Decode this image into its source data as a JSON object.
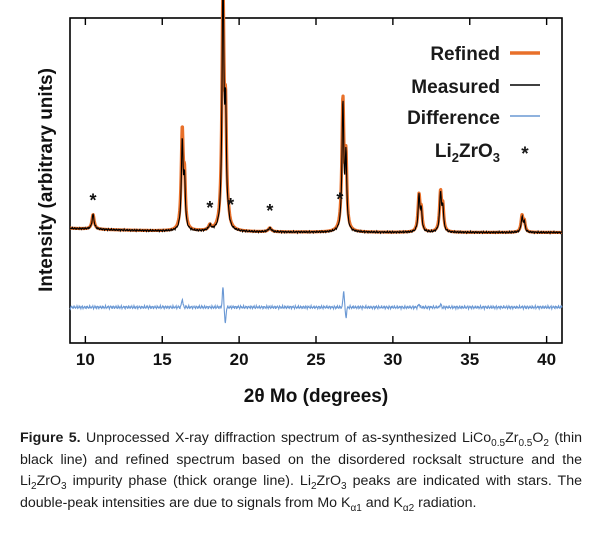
{
  "chart_data": {
    "type": "line",
    "xlabel_parts": {
      "two": "2",
      "theta": "θ",
      "rest": " Mo (degrees)"
    },
    "ylabel": "Intensity (arbitrary units)",
    "xlim": [
      9,
      41
    ],
    "ylim": [
      0,
      100
    ],
    "x_ticks": [
      10,
      15,
      20,
      25,
      30,
      35,
      40
    ],
    "x_tick_labels": [
      "10",
      "15",
      "20",
      "25",
      "30",
      "35",
      "40"
    ],
    "legend_position": "top-right",
    "legend": [
      {
        "text": "Refined",
        "color": "#e8702a"
      },
      {
        "text": "Measured",
        "color": "#000000"
      },
      {
        "text": "Difference",
        "color": "#6a98d4"
      },
      {
        "text": "Li",
        "sub": "2",
        "text2": "ZrO",
        "sub2": "3",
        "marker": "*"
      }
    ],
    "series": [
      {
        "name": "Measured",
        "color": "#000000",
        "baseline": 34,
        "peaks": [
          [
            10.5,
            4.5,
            0.08
          ],
          [
            16.3,
            27,
            0.07
          ],
          [
            16.45,
            14,
            0.06
          ],
          [
            18.1,
            1.5,
            0.1
          ],
          [
            18.95,
            78,
            0.07
          ],
          [
            19.12,
            33,
            0.06
          ],
          [
            19.3,
            2,
            0.08
          ],
          [
            22.0,
            1.2,
            0.12
          ],
          [
            26.75,
            39,
            0.07
          ],
          [
            26.95,
            22,
            0.06
          ],
          [
            31.7,
            11,
            0.07
          ],
          [
            31.85,
            6,
            0.06
          ],
          [
            33.1,
            12,
            0.07
          ],
          [
            33.25,
            7,
            0.06
          ],
          [
            38.4,
            4.5,
            0.07
          ],
          [
            38.55,
            3,
            0.06
          ]
        ]
      },
      {
        "name": "Refined",
        "color": "#e8702a",
        "baseline": 34,
        "peaks": [
          [
            10.5,
            4.5,
            0.09
          ],
          [
            16.3,
            30,
            0.08
          ],
          [
            16.45,
            14,
            0.07
          ],
          [
            18.1,
            1.5,
            0.1
          ],
          [
            18.95,
            73,
            0.08
          ],
          [
            19.12,
            31,
            0.07
          ],
          [
            19.3,
            2,
            0.08
          ],
          [
            22.0,
            1.2,
            0.12
          ],
          [
            26.75,
            40,
            0.08
          ],
          [
            26.95,
            21,
            0.07
          ],
          [
            31.7,
            11,
            0.08
          ],
          [
            31.85,
            6,
            0.07
          ],
          [
            33.1,
            12,
            0.08
          ],
          [
            33.25,
            7,
            0.07
          ],
          [
            38.4,
            5,
            0.08
          ],
          [
            38.55,
            3,
            0.07
          ]
        ]
      },
      {
        "name": "Difference",
        "color": "#6a98d4",
        "baseline": 11,
        "spikes": [
          [
            16.3,
            2.5
          ],
          [
            18.95,
            6
          ],
          [
            19.1,
            -5
          ],
          [
            26.8,
            5
          ],
          [
            26.95,
            -3
          ],
          [
            31.7,
            1
          ],
          [
            33.1,
            1
          ]
        ]
      }
    ],
    "star_positions": [
      10.5,
      18.1,
      19.45,
      22.0,
      26.55
    ]
  },
  "caption": {
    "label": "Figure 5.",
    "p1": " Unprocessed X-ray diffraction spectrum of as-synthesized LiCo",
    "sub1": "0.5",
    "p2": "Zr",
    "sub2": "0.5",
    "p3": "O",
    "sub3": "2",
    "p4": " (thin black line) and refined spectrum based on the disordered rocksalt structure and the Li",
    "sub4": "2",
    "p5": "ZrO",
    "sub5": "3",
    "p6": " impurity phase (thick orange line). Li",
    "sub6": "2",
    "p7": "ZrO",
    "sub7": "3",
    "p8": " peaks are indicated with stars. The double-peak intensities are due to signals from Mo K",
    "sub8": "α1",
    "p9": " and K",
    "sub9": "α2",
    "p10": " radiation."
  }
}
